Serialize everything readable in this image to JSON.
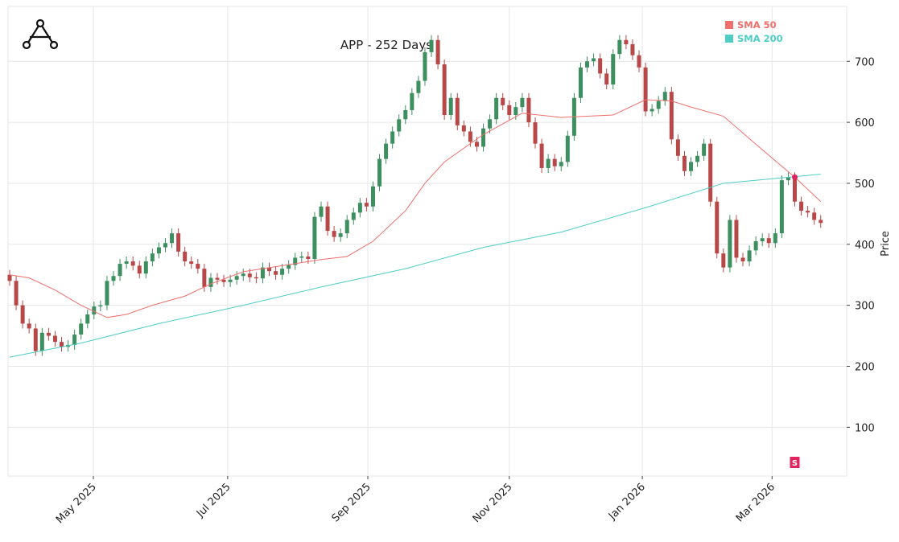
{
  "chart_data": {
    "type": "candlestick",
    "title": "APP - 252 Days",
    "y_label": "Price",
    "x": [
      0,
      1,
      2,
      3,
      4,
      5,
      6,
      7,
      8,
      9,
      10,
      11,
      12,
      13,
      14,
      15,
      16,
      17,
      18,
      19,
      20,
      21,
      22,
      23,
      24,
      25,
      26,
      27,
      28,
      29,
      30,
      31,
      32,
      33,
      34,
      35,
      36,
      37,
      38,
      39,
      40,
      41,
      42,
      43,
      44,
      45,
      46,
      47,
      48,
      49,
      50,
      51,
      52,
      53,
      54,
      55,
      56,
      57,
      58,
      59,
      60,
      61,
      62,
      63,
      64,
      65,
      66,
      67,
      68,
      69,
      70,
      71,
      72,
      73,
      74,
      75,
      76,
      77,
      78,
      79,
      80,
      81,
      82,
      83,
      84,
      85,
      86,
      87,
      88,
      89,
      90,
      91,
      92,
      93,
      94,
      95,
      96,
      97,
      98,
      99,
      100,
      101,
      102,
      103,
      104,
      105,
      106,
      107,
      108,
      109,
      110,
      111,
      112,
      113,
      114,
      115,
      116,
      117,
      118,
      119,
      120,
      121,
      122,
      123,
      124,
      125
    ],
    "open": [
      350,
      340,
      300,
      270,
      262,
      225,
      255,
      250,
      240,
      232,
      235,
      252,
      270,
      285,
      298,
      300,
      340,
      348,
      368,
      372,
      365,
      352,
      372,
      385,
      395,
      402,
      418,
      388,
      372,
      368,
      360,
      330,
      345,
      342,
      338,
      342,
      348,
      352,
      346,
      344,
      362,
      356,
      350,
      360,
      366,
      378,
      380,
      376,
      445,
      462,
      422,
      412,
      418,
      440,
      452,
      468,
      462,
      495,
      540,
      565,
      585,
      605,
      620,
      648,
      668,
      715,
      735,
      695,
      612,
      640,
      595,
      585,
      568,
      560,
      590,
      605,
      640,
      628,
      612,
      625,
      640,
      600,
      565,
      525,
      540,
      528,
      535,
      578,
      640,
      690,
      700,
      705,
      680,
      662,
      712,
      735,
      728,
      710,
      690,
      618,
      622,
      635,
      650,
      572,
      545,
      520,
      535,
      545,
      565,
      470,
      385,
      362,
      440,
      378,
      372,
      390,
      405,
      410,
      402,
      418,
      505,
      510,
      470,
      455,
      452,
      440
    ],
    "high": [
      358,
      348,
      308,
      278,
      270,
      263,
      263,
      258,
      248,
      243,
      260,
      278,
      293,
      306,
      308,
      348,
      356,
      376,
      380,
      380,
      373,
      380,
      393,
      403,
      410,
      426,
      426,
      396,
      380,
      376,
      368,
      353,
      353,
      350,
      350,
      356,
      360,
      360,
      354,
      370,
      370,
      364,
      368,
      374,
      386,
      388,
      388,
      453,
      470,
      470,
      430,
      426,
      448,
      460,
      476,
      476,
      503,
      548,
      573,
      593,
      613,
      628,
      656,
      676,
      723,
      743,
      743,
      703,
      648,
      648,
      603,
      593,
      576,
      598,
      613,
      648,
      648,
      636,
      633,
      648,
      648,
      608,
      573,
      548,
      548,
      543,
      586,
      648,
      698,
      708,
      713,
      713,
      688,
      720,
      743,
      743,
      736,
      718,
      698,
      630,
      643,
      658,
      658,
      580,
      553,
      543,
      553,
      573,
      573,
      478,
      393,
      448,
      448,
      386,
      398,
      413,
      418,
      418,
      426,
      513,
      518,
      518,
      478,
      463,
      460,
      448
    ],
    "low": [
      332,
      292,
      262,
      254,
      217,
      217,
      242,
      232,
      224,
      224,
      227,
      244,
      262,
      277,
      290,
      292,
      332,
      340,
      360,
      357,
      344,
      344,
      364,
      377,
      387,
      394,
      380,
      364,
      360,
      352,
      322,
      322,
      334,
      330,
      330,
      334,
      340,
      338,
      336,
      336,
      348,
      342,
      342,
      352,
      358,
      370,
      368,
      368,
      437,
      414,
      404,
      404,
      410,
      432,
      444,
      454,
      454,
      487,
      532,
      557,
      577,
      597,
      612,
      640,
      660,
      707,
      687,
      604,
      604,
      587,
      577,
      560,
      552,
      552,
      582,
      597,
      620,
      604,
      604,
      617,
      592,
      557,
      517,
      517,
      520,
      520,
      527,
      570,
      632,
      682,
      692,
      672,
      654,
      654,
      704,
      720,
      702,
      682,
      610,
      610,
      614,
      627,
      564,
      537,
      512,
      512,
      527,
      537,
      462,
      377,
      354,
      354,
      370,
      364,
      364,
      382,
      397,
      394,
      394,
      410,
      497,
      462,
      447,
      444,
      432,
      427
    ],
    "close": [
      340,
      300,
      270,
      262,
      225,
      255,
      250,
      240,
      232,
      235,
      252,
      270,
      285,
      298,
      300,
      340,
      348,
      368,
      372,
      365,
      352,
      372,
      385,
      395,
      402,
      418,
      388,
      372,
      368,
      360,
      330,
      345,
      342,
      338,
      342,
      348,
      352,
      346,
      344,
      362,
      356,
      350,
      360,
      366,
      378,
      380,
      376,
      445,
      462,
      422,
      412,
      418,
      440,
      452,
      468,
      462,
      495,
      540,
      565,
      585,
      605,
      620,
      648,
      668,
      715,
      735,
      695,
      612,
      640,
      595,
      585,
      568,
      560,
      590,
      605,
      640,
      628,
      612,
      625,
      640,
      600,
      565,
      525,
      540,
      528,
      535,
      578,
      640,
      690,
      700,
      705,
      680,
      662,
      712,
      735,
      728,
      710,
      690,
      618,
      622,
      635,
      650,
      572,
      545,
      520,
      535,
      545,
      565,
      470,
      385,
      362,
      440,
      378,
      372,
      390,
      405,
      410,
      402,
      418,
      505,
      510,
      470,
      455,
      452,
      440,
      435
    ],
    "up_color": "#3d8f5f",
    "down_color": "#b84848",
    "series": [
      {
        "name": "SMA 50",
        "color": "#ef6f6c",
        "x": [
          0,
          3,
          7,
          11,
          15,
          18,
          22,
          27,
          31,
          36,
          42,
          48,
          52,
          56,
          61,
          64,
          67,
          73,
          79,
          85,
          93,
          98,
          102,
          105,
          110,
          116,
          121,
          125
        ],
        "values": [
          350,
          345,
          325,
          300,
          280,
          285,
          300,
          315,
          335,
          355,
          365,
          375,
          380,
          405,
          455,
          500,
          535,
          580,
          615,
          608,
          612,
          637,
          635,
          625,
          610,
          555,
          510,
          470
        ]
      },
      {
        "name": "SMA 200",
        "color": "#4ecdc4",
        "x": [
          0,
          11,
          23,
          36,
          48,
          61,
          73,
          85,
          98,
          110,
          125
        ],
        "values": [
          215,
          238,
          270,
          300,
          330,
          360,
          395,
          420,
          460,
          500,
          515
        ]
      }
    ],
    "annotations": [
      {
        "x": 121,
        "y": 510,
        "label": "S",
        "color": "#e0245e"
      }
    ],
    "xlim": [
      -0.25,
      129
    ],
    "xticks": [
      {
        "value": 12.9,
        "label": "May 2025"
      },
      {
        "value": 33.6,
        "label": "Jul 2025"
      },
      {
        "value": 55.2,
        "label": "Sep 2025"
      },
      {
        "value": 77.0,
        "label": "Nov 2025"
      },
      {
        "value": 97.5,
        "label": "Jan 2026"
      },
      {
        "value": 117.5,
        "label": "Mar 2026"
      }
    ],
    "ylim": [
      20,
      790
    ],
    "yticks": [
      100,
      200,
      300,
      400,
      500,
      600,
      700
    ],
    "grid": true,
    "legend": "upper right"
  }
}
